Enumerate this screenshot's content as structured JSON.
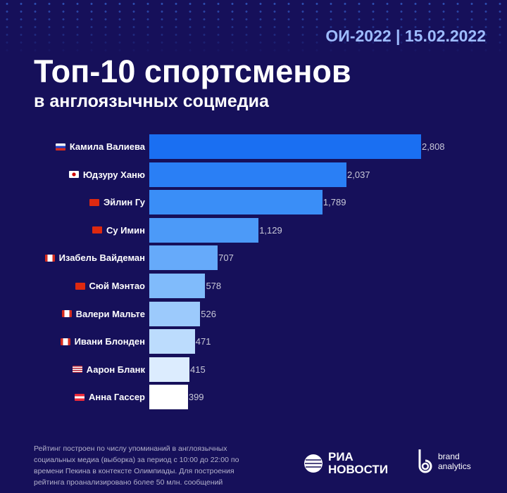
{
  "header": {
    "date": "ОИ-2022 | 15.02.2022",
    "title": "Топ-10 спортсменов",
    "subtitle": "в англоязычных соцмедиа"
  },
  "chart_data": {
    "type": "bar",
    "orientation": "horizontal",
    "title": "Топ-10 спортсменов в англоязычных соцмедиа",
    "categories": [
      "Камила Валиева",
      "Юдзуру Ханю",
      "Эйлин Гу",
      "Су Имин",
      "Изабель Вайдеман",
      "Сюй Мэнтао",
      "Валери Мальте",
      "Ивани Блонден",
      "Аарон Бланк",
      "Анна Гассер"
    ],
    "flags": [
      "russia",
      "japan",
      "china",
      "china",
      "canada",
      "china",
      "canada",
      "canada",
      "usa",
      "austria"
    ],
    "values": [
      2808,
      2037,
      1789,
      1129,
      707,
      578,
      526,
      471,
      415,
      399
    ],
    "value_labels": [
      "2,808",
      "2,037",
      "1,789",
      "1,129",
      "707",
      "578",
      "526",
      "471",
      "415",
      "399"
    ],
    "colors": [
      "#1a6ff2",
      "#2a7ff5",
      "#3a8ef7",
      "#4c9af8",
      "#66aafa",
      "#80bbfb",
      "#9ccafc",
      "#bcdcfd",
      "#dcecfe",
      "#ffffff"
    ],
    "xlim": [
      0,
      2808
    ]
  },
  "footer": {
    "note": "Рейтинг построен по числу упоминаний в англоязычных социальных медиа (выборка) за период с 10:00 до 22:00 по времени Пекина в контексте Олимпиады. Для построения рейтинга проанализировано более 50 млн. сообщений",
    "ria_line1": "РИА",
    "ria_line2": "НОВОСТИ",
    "ba_line1": "brand",
    "ba_line2": "analytics"
  }
}
